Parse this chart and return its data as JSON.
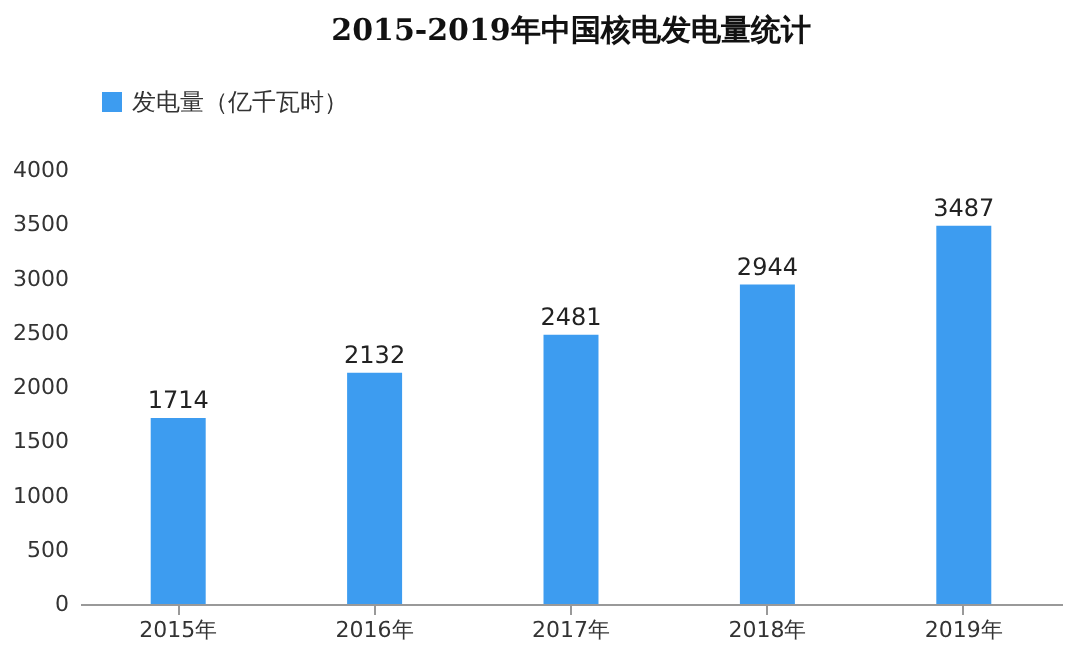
{
  "chart_data": {
    "type": "bar",
    "title": "2015-2019年中国核电发电量统计",
    "categories": [
      "2015年",
      "2016年",
      "2017年",
      "2018年",
      "2019年"
    ],
    "series": [
      {
        "name": "发电量（亿千瓦时）",
        "color": "#3d9cf0",
        "values": [
          1714,
          2132,
          2481,
          2944,
          3487
        ]
      }
    ],
    "ylim": [
      0,
      4000
    ],
    "yticks": [
      0,
      500,
      1000,
      1500,
      2000,
      2500,
      3000,
      3500,
      4000
    ],
    "data_labels": true,
    "legend": "top"
  }
}
